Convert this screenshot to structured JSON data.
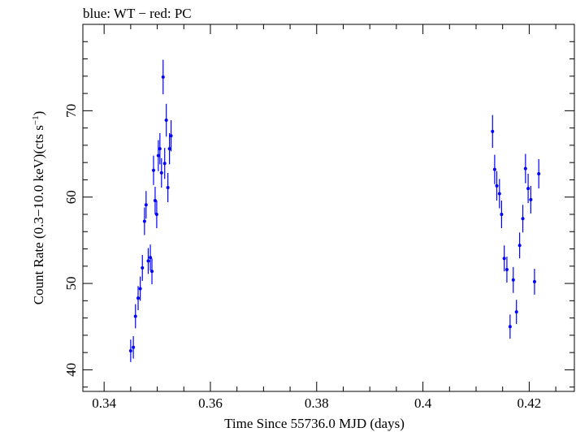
{
  "chart_data": {
    "type": "scatter",
    "title": "blue: WT − red: PC",
    "xlabel": "Time Since 55736.0 MJD (days)",
    "ylabel_main": "Count Rate (0.3−10.0 keV)(cts s",
    "ylabel_sup": "−1",
    "ylabel_end": ")",
    "xlim": [
      0.336,
      0.4285
    ],
    "ylim": [
      37.5,
      80.0
    ],
    "x_ticks": [
      0.34,
      0.36,
      0.38,
      0.4,
      0.42
    ],
    "x_tick_labels": [
      "0.34",
      "0.36",
      "0.38",
      "0.4",
      "0.42"
    ],
    "y_ticks": [
      40,
      50,
      60,
      70
    ],
    "y_tick_labels": [
      "40",
      "50",
      "60",
      "70"
    ],
    "grid": false,
    "legend": "none",
    "series": [
      {
        "color": "#0000ff",
        "points": [
          {
            "x": 0.345,
            "y": 42.2,
            "yerr": 1.3
          },
          {
            "x": 0.3455,
            "y": 42.6,
            "yerr": 1.3
          },
          {
            "x": 0.3459,
            "y": 46.2,
            "yerr": 1.4
          },
          {
            "x": 0.3464,
            "y": 48.3,
            "yerr": 1.4
          },
          {
            "x": 0.3468,
            "y": 49.4,
            "yerr": 1.4
          },
          {
            "x": 0.3472,
            "y": 51.8,
            "yerr": 1.5
          },
          {
            "x": 0.3476,
            "y": 57.2,
            "yerr": 1.6
          },
          {
            "x": 0.3479,
            "y": 59.1,
            "yerr": 1.6
          },
          {
            "x": 0.3483,
            "y": 52.6,
            "yerr": 1.5
          },
          {
            "x": 0.3487,
            "y": 53.0,
            "yerr": 1.5
          },
          {
            "x": 0.349,
            "y": 51.4,
            "yerr": 1.5
          },
          {
            "x": 0.3493,
            "y": 63.1,
            "yerr": 1.7
          },
          {
            "x": 0.3496,
            "y": 59.6,
            "yerr": 1.6
          },
          {
            "x": 0.3499,
            "y": 58.0,
            "yerr": 1.6
          },
          {
            "x": 0.3502,
            "y": 64.8,
            "yerr": 1.8
          },
          {
            "x": 0.3505,
            "y": 65.6,
            "yerr": 1.8
          },
          {
            "x": 0.3508,
            "y": 62.8,
            "yerr": 1.7
          },
          {
            "x": 0.3511,
            "y": 73.9,
            "yerr": 2.0
          },
          {
            "x": 0.3514,
            "y": 63.9,
            "yerr": 1.8
          },
          {
            "x": 0.3517,
            "y": 68.9,
            "yerr": 1.9
          },
          {
            "x": 0.352,
            "y": 61.1,
            "yerr": 1.7
          },
          {
            "x": 0.3523,
            "y": 65.6,
            "yerr": 1.8
          },
          {
            "x": 0.3526,
            "y": 67.1,
            "yerr": 1.8
          },
          {
            "x": 0.4131,
            "y": 67.6,
            "yerr": 1.9
          },
          {
            "x": 0.4135,
            "y": 63.2,
            "yerr": 1.7
          },
          {
            "x": 0.4139,
            "y": 61.3,
            "yerr": 1.7
          },
          {
            "x": 0.4144,
            "y": 60.4,
            "yerr": 1.7
          },
          {
            "x": 0.4148,
            "y": 58.0,
            "yerr": 1.6
          },
          {
            "x": 0.4153,
            "y": 52.9,
            "yerr": 1.5
          },
          {
            "x": 0.4158,
            "y": 51.6,
            "yerr": 1.5
          },
          {
            "x": 0.4164,
            "y": 45.0,
            "yerr": 1.4
          },
          {
            "x": 0.417,
            "y": 50.4,
            "yerr": 1.5
          },
          {
            "x": 0.4176,
            "y": 46.7,
            "yerr": 1.4
          },
          {
            "x": 0.4182,
            "y": 54.4,
            "yerr": 1.5
          },
          {
            "x": 0.4188,
            "y": 57.5,
            "yerr": 1.6
          },
          {
            "x": 0.4193,
            "y": 63.3,
            "yerr": 1.7
          },
          {
            "x": 0.4198,
            "y": 61.0,
            "yerr": 1.7
          },
          {
            "x": 0.4203,
            "y": 59.7,
            "yerr": 1.6
          },
          {
            "x": 0.421,
            "y": 50.2,
            "yerr": 1.5
          },
          {
            "x": 0.4218,
            "y": 62.7,
            "yerr": 1.7
          }
        ]
      }
    ]
  }
}
